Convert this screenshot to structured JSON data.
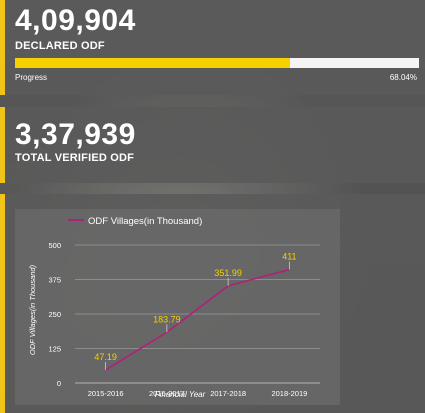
{
  "declared": {
    "value": "4,09,904",
    "label": "DECLARED ODF",
    "progress_label": "Progress",
    "progress_value": "68.04%",
    "progress_fraction": 0.6804
  },
  "verified": {
    "value": "3,37,939",
    "label": "TOTAL VERIFIED ODF"
  },
  "colors": {
    "accent": "#f0c419",
    "progress_fill": "#f7d000",
    "line": "#b0207a",
    "data_label": "#f7d000"
  },
  "chart_data": {
    "type": "line",
    "categories": [
      "2015-2016",
      "2016-2017",
      "2017-2018",
      "2018-2019"
    ],
    "series": [
      {
        "name": "ODF Villages(in Thousand)",
        "values": [
          47.19,
          183.79,
          351.99,
          411
        ]
      }
    ],
    "data_labels": [
      "47.19",
      "183.79",
      "351.99",
      "411"
    ],
    "ylim": [
      0,
      500
    ],
    "yticks": [
      "0",
      "125",
      "250",
      "375",
      "500"
    ],
    "xlabel": "Financial Year",
    "ylabel": "ODF Villages(in Thousand)",
    "legend": "top-left",
    "grid": true
  }
}
